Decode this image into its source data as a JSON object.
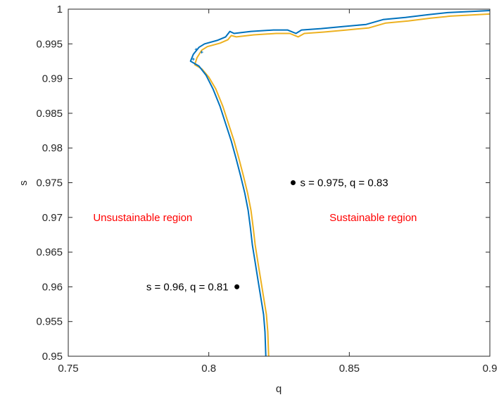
{
  "chart_data": {
    "type": "line",
    "title": "",
    "xlabel": "q",
    "ylabel": "s",
    "xlim": [
      0.75,
      0.9
    ],
    "ylim": [
      0.95,
      1.0
    ],
    "grid": false,
    "x_ticks": [
      "0.75",
      "0.8",
      "0.85",
      "0.9"
    ],
    "y_ticks": [
      "0.95",
      "0.955",
      "0.96",
      "0.965",
      "0.97",
      "0.975",
      "0.98",
      "0.985",
      "0.99",
      "0.995",
      "1"
    ],
    "series": [
      {
        "color": "#0072BD",
        "boundary": [
          [
            0.8203,
            0.95
          ],
          [
            0.82,
            0.9535
          ],
          [
            0.8195,
            0.956
          ],
          [
            0.8185,
            0.9585
          ],
          [
            0.8175,
            0.961
          ],
          [
            0.8165,
            0.9635
          ],
          [
            0.8155,
            0.966
          ],
          [
            0.8148,
            0.9685
          ],
          [
            0.814,
            0.971
          ],
          [
            0.8128,
            0.9735
          ],
          [
            0.8113,
            0.976
          ],
          [
            0.8097,
            0.9785
          ],
          [
            0.808,
            0.981
          ],
          [
            0.806,
            0.9835
          ],
          [
            0.804,
            0.986
          ],
          [
            0.8015,
            0.9885
          ],
          [
            0.799,
            0.9905
          ],
          [
            0.7965,
            0.9918
          ],
          [
            0.7935,
            0.9925
          ],
          [
            0.7945,
            0.9935
          ],
          [
            0.7965,
            0.9945
          ],
          [
            0.7985,
            0.995
          ],
          [
            0.803,
            0.9955
          ],
          [
            0.806,
            0.996
          ],
          [
            0.8075,
            0.9968
          ],
          [
            0.809,
            0.9965
          ],
          [
            0.815,
            0.9968
          ],
          [
            0.823,
            0.997
          ],
          [
            0.828,
            0.997
          ],
          [
            0.831,
            0.9965
          ],
          [
            0.833,
            0.997
          ],
          [
            0.84,
            0.9972
          ],
          [
            0.848,
            0.9975
          ],
          [
            0.856,
            0.9978
          ],
          [
            0.862,
            0.9985
          ],
          [
            0.87,
            0.9988
          ],
          [
            0.878,
            0.9992
          ],
          [
            0.885,
            0.9995
          ],
          [
            0.9,
            0.9998
          ]
        ]
      },
      {
        "color": "#EDB120",
        "boundary": [
          [
            0.8213,
            0.95
          ],
          [
            0.821,
            0.9535
          ],
          [
            0.8205,
            0.956
          ],
          [
            0.8195,
            0.9585
          ],
          [
            0.8185,
            0.961
          ],
          [
            0.8175,
            0.9635
          ],
          [
            0.8165,
            0.966
          ],
          [
            0.8158,
            0.9685
          ],
          [
            0.815,
            0.971
          ],
          [
            0.8138,
            0.9735
          ],
          [
            0.8123,
            0.976
          ],
          [
            0.8107,
            0.9785
          ],
          [
            0.809,
            0.981
          ],
          [
            0.807,
            0.9835
          ],
          [
            0.805,
            0.986
          ],
          [
            0.8025,
            0.9885
          ],
          [
            0.8,
            0.9902
          ],
          [
            0.7975,
            0.9914
          ],
          [
            0.795,
            0.992
          ],
          [
            0.7958,
            0.993
          ],
          [
            0.7975,
            0.9941
          ],
          [
            0.7995,
            0.9946
          ],
          [
            0.804,
            0.9951
          ],
          [
            0.8068,
            0.9956
          ],
          [
            0.808,
            0.9962
          ],
          [
            0.8098,
            0.996
          ],
          [
            0.816,
            0.9963
          ],
          [
            0.824,
            0.9965
          ],
          [
            0.8288,
            0.9965
          ],
          [
            0.8318,
            0.996
          ],
          [
            0.834,
            0.9965
          ],
          [
            0.841,
            0.9967
          ],
          [
            0.849,
            0.997
          ],
          [
            0.857,
            0.9973
          ],
          [
            0.863,
            0.998
          ],
          [
            0.871,
            0.9983
          ],
          [
            0.879,
            0.9987
          ],
          [
            0.886,
            0.999
          ],
          [
            0.9,
            0.9993
          ]
        ]
      }
    ],
    "points": [
      {
        "q": 0.83,
        "s": 0.975,
        "label": "s = 0.975, q = 0.83",
        "label_side": "right"
      },
      {
        "q": 0.81,
        "s": 0.96,
        "label": "s = 0.96, q = 0.81",
        "label_side": "left"
      }
    ],
    "region_labels": [
      {
        "text": "Unsustainable region",
        "q": 0.7765,
        "s": 0.97,
        "color": "#FF0000"
      },
      {
        "text": "Sustainable region",
        "q": 0.8585,
        "s": 0.97,
        "color": "#FF0000"
      }
    ]
  }
}
